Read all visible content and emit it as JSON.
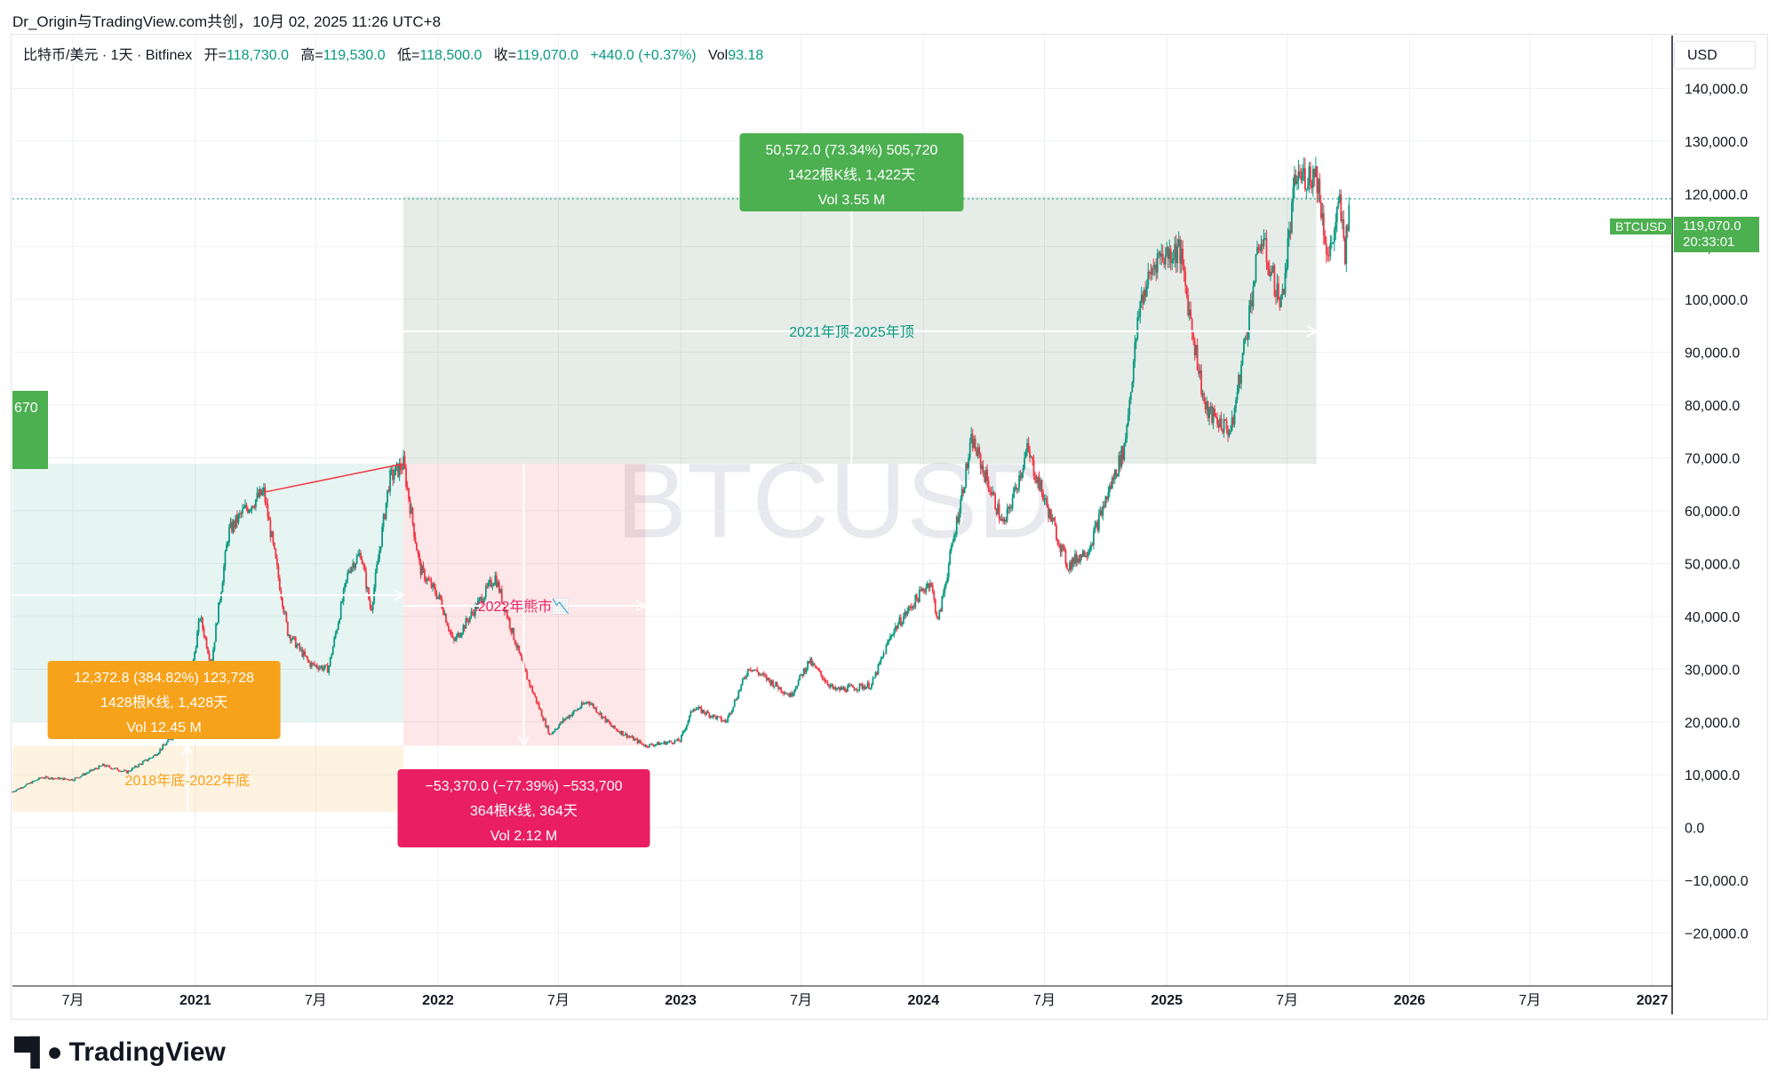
{
  "header": {
    "caption": "Dr_Origin与TradingView.com共创，10月 02, 2025 11:26 UTC+8"
  },
  "legend": {
    "symbol": "比特币/美元 · 1天 · Bitfinex",
    "open_label": "开=",
    "open": "118,730.0",
    "high_label": "高=",
    "high": "119,530.0",
    "low_label": "低=",
    "low": "118,500.0",
    "close_label": "收=",
    "close": "119,070.0",
    "change": "+440.0 (+0.37%)",
    "vol_label": "Vol",
    "vol": "93.18"
  },
  "currency_button": "USD",
  "last_price": {
    "symbol": "BTCUSD",
    "price": "119,070.0",
    "countdown": "20:33:01"
  },
  "watermark": "BTCUSD",
  "brand": "TradingView",
  "colors": {
    "up": "#089981",
    "down": "#f23645",
    "green_box": "#4caf50",
    "red_box": "#e91e63",
    "orange_box": "#f7a21b"
  },
  "chart_data": {
    "type": "candlestick",
    "ylim": [
      -30000,
      150000
    ],
    "yticks": [
      "140,000.0",
      "130,000.0",
      "120,000.0",
      "110,000.0",
      "100,000.0",
      "90,000.0",
      "80,000.0",
      "70,000.0",
      "60,000.0",
      "50,000.0",
      "40,000.0",
      "30,000.0",
      "20,000.0",
      "10,000.0",
      "0.0",
      "−10,000.0",
      "−20,000.0"
    ],
    "ytick_values": [
      140000,
      130000,
      120000,
      110000,
      100000,
      90000,
      80000,
      70000,
      60000,
      50000,
      40000,
      30000,
      20000,
      10000,
      0,
      -10000,
      -20000
    ],
    "xticks": [
      {
        "label": "7月",
        "date": "2020-07-01",
        "bold": false
      },
      {
        "label": "2021",
        "date": "2021-01-01",
        "bold": true
      },
      {
        "label": "7月",
        "date": "2021-07-01",
        "bold": false
      },
      {
        "label": "2022",
        "date": "2022-01-01",
        "bold": true
      },
      {
        "label": "7月",
        "date": "2022-07-01",
        "bold": false
      },
      {
        "label": "2023",
        "date": "2023-01-01",
        "bold": true
      },
      {
        "label": "7月",
        "date": "2023-07-01",
        "bold": false
      },
      {
        "label": "2024",
        "date": "2024-01-01",
        "bold": true
      },
      {
        "label": "7月",
        "date": "2024-07-01",
        "bold": false
      },
      {
        "label": "2025",
        "date": "2025-01-01",
        "bold": true
      },
      {
        "label": "7月",
        "date": "2025-07-01",
        "bold": false
      },
      {
        "label": "2026",
        "date": "2026-01-01",
        "bold": true
      },
      {
        "label": "7月",
        "date": "2026-07-01",
        "bold": false
      },
      {
        "label": "2027",
        "date": "2027-01-01",
        "bold": true
      }
    ],
    "xrange": [
      "2020-04-01",
      "2027-01-31"
    ],
    "price_path": [
      [
        "2020-04-01",
        6800
      ],
      [
        "2020-05-15",
        9500
      ],
      [
        "2020-07-01",
        9100
      ],
      [
        "2020-08-15",
        11800
      ],
      [
        "2020-09-20",
        10500
      ],
      [
        "2020-11-01",
        13700
      ],
      [
        "2020-12-15",
        19500
      ],
      [
        "2021-01-08",
        40000
      ],
      [
        "2021-01-25",
        31000
      ],
      [
        "2021-02-20",
        56000
      ],
      [
        "2021-03-15",
        60000
      ],
      [
        "2021-04-14",
        63500
      ],
      [
        "2021-05-20",
        37000
      ],
      [
        "2021-06-22",
        31000
      ],
      [
        "2021-07-20",
        30000
      ],
      [
        "2021-08-20",
        49000
      ],
      [
        "2021-09-07",
        52000
      ],
      [
        "2021-09-22",
        41000
      ],
      [
        "2021-10-20",
        66000
      ],
      [
        "2021-11-10",
        68900
      ],
      [
        "2021-12-05",
        49000
      ],
      [
        "2022-01-05",
        43000
      ],
      [
        "2022-01-24",
        35000
      ],
      [
        "2022-03-28",
        47500
      ],
      [
        "2022-05-10",
        30000
      ],
      [
        "2022-06-18",
        17600
      ],
      [
        "2022-07-10",
        20500
      ],
      [
        "2022-08-15",
        24000
      ],
      [
        "2022-09-20",
        19000
      ],
      [
        "2022-11-09",
        15500
      ],
      [
        "2022-12-31",
        16500
      ],
      [
        "2023-01-20",
        22800
      ],
      [
        "2023-03-10",
        20000
      ],
      [
        "2023-04-14",
        30500
      ],
      [
        "2023-06-15",
        25000
      ],
      [
        "2023-07-13",
        31500
      ],
      [
        "2023-08-20",
        26000
      ],
      [
        "2023-10-15",
        27000
      ],
      [
        "2023-11-15",
        37000
      ],
      [
        "2024-01-11",
        46800
      ],
      [
        "2024-01-23",
        39000
      ],
      [
        "2024-03-14",
        73500
      ],
      [
        "2024-05-01",
        57000
      ],
      [
        "2024-06-05",
        71500
      ],
      [
        "2024-08-05",
        49500
      ],
      [
        "2024-09-06",
        53000
      ],
      [
        "2024-10-29",
        72000
      ],
      [
        "2024-11-22",
        99500
      ],
      [
        "2024-12-17",
        108000
      ],
      [
        "2025-01-20",
        109500
      ],
      [
        "2025-02-28",
        79000
      ],
      [
        "2025-04-08",
        75000
      ],
      [
        "2025-05-22",
        111900
      ],
      [
        "2025-06-22",
        99000
      ],
      [
        "2025-07-14",
        123000
      ],
      [
        "2025-08-14",
        124000
      ],
      [
        "2025-09-01",
        107500
      ],
      [
        "2025-09-18",
        117900
      ],
      [
        "2025-09-26",
        109000
      ],
      [
        "2025-10-02",
        119070
      ]
    ],
    "annotations": [
      {
        "label": "2018年底-2022年底",
        "stats": [
          "12,372.8 (384.82%) 123,728",
          "1428根K线, 1,428天",
          "Vol 12.45 M"
        ]
      },
      {
        "label": "2022年熊市📉",
        "stats": [
          "−53,370.0 (−77.39%) −533,700",
          "364根K线, 364天",
          "Vol 2.12 M"
        ]
      },
      {
        "label": "2021年顶-2025年顶",
        "stats": [
          "50,572.0 (73.34%) 505,720",
          "1422根K线, 1,422天",
          "Vol 3.55 M"
        ]
      }
    ],
    "partial_label": "670"
  }
}
